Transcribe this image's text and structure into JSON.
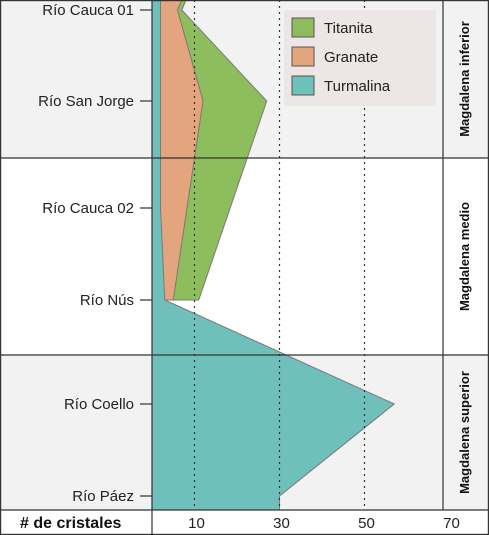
{
  "chart_data": {
    "type": "area",
    "xlabel": "# de cristales",
    "x_ticks": [
      "10",
      "30",
      "50",
      "70"
    ],
    "xlim": [
      0,
      70
    ],
    "grid": "dotted vertical lines at 10, 30, 50",
    "legend_placement": "top-right",
    "samples": [
      "Río Cauca 01",
      "Río San Jorge",
      "Río Cauca 02",
      "Río Nús",
      "Río Coello",
      "Río Páez"
    ],
    "regions": [
      "Magdalena inferior",
      "Magdalena medio",
      "Magdalena superior"
    ],
    "series": [
      {
        "name": "Titanita",
        "color": "#8dbd5c",
        "cumulative_values": [
          7,
          27,
          null,
          11,
          null,
          null
        ]
      },
      {
        "name": "Granate",
        "color": "#e3a57d",
        "cumulative_values": [
          6,
          12,
          null,
          5,
          null,
          null
        ]
      },
      {
        "name": "Turmalina",
        "color": "#6fbfba",
        "cumulative_values": [
          2,
          2,
          2,
          3,
          57,
          30
        ]
      }
    ]
  }
}
